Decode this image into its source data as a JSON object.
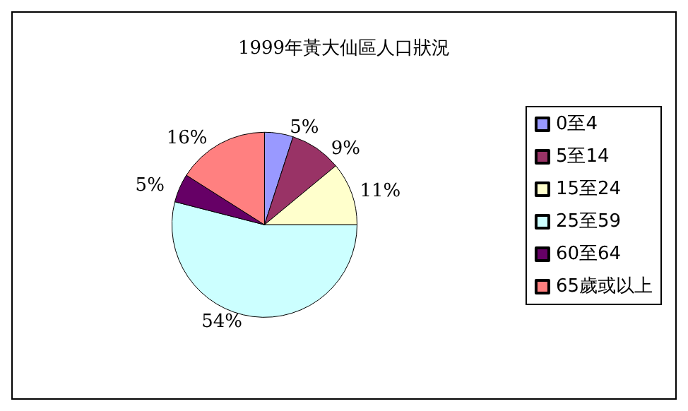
{
  "chart_data": {
    "type": "pie",
    "title": "1999年黃大仙區人口狀況",
    "categories": [
      "0至4",
      "5至14",
      "15至24",
      "25至59",
      "60至64",
      "65歲或以上"
    ],
    "values": [
      5,
      9,
      11,
      54,
      5,
      16
    ],
    "value_labels": [
      "5%",
      "9%",
      "11%",
      "54%",
      "5%",
      "16%"
    ],
    "colors": [
      "#9999ff",
      "#993366",
      "#ffffcc",
      "#ccffff",
      "#660066",
      "#ff8080"
    ],
    "legend": "right"
  }
}
